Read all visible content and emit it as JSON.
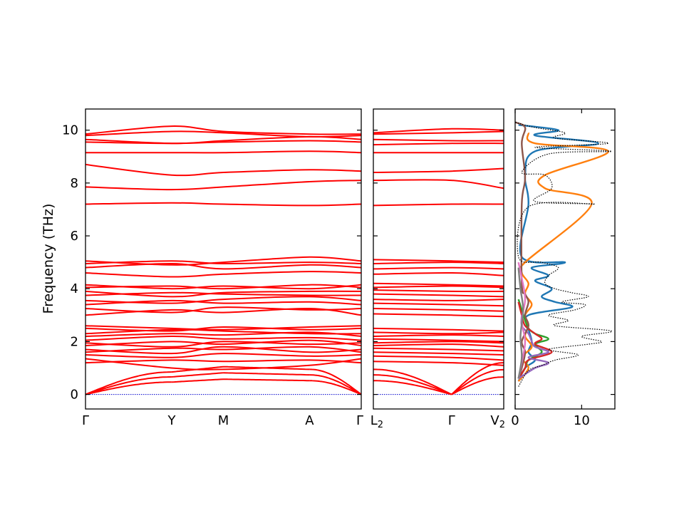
{
  "chart_data": {
    "type": "line",
    "ylabel": "Frequency (THz)",
    "ylim": [
      -0.55,
      10.8
    ],
    "yticks": [
      0,
      2,
      4,
      6,
      8,
      10
    ],
    "grid": false,
    "line_color": "#ff0000",
    "zero_line_color": "#0000cc",
    "panels": [
      {
        "name": "band-path-1",
        "kpoints": [
          {
            "label": "Γ",
            "x": 0.0
          },
          {
            "label": "Y",
            "x": 1.0
          },
          {
            "label": "M",
            "x": 1.6
          },
          {
            "label": "A",
            "x": 2.6
          },
          {
            "label": "Γ",
            "x": 3.2
          }
        ],
        "acoustic_max": [
          0.0,
          0.85,
          1.05,
          0.95,
          0.0
        ],
        "optical_bands": [
          [
            1.2,
            1.3,
            1.25,
            1.3,
            1.2
          ],
          [
            1.35,
            1.0,
            0.95,
            1.1,
            1.35
          ],
          [
            1.5,
            1.4,
            1.55,
            1.45,
            1.5
          ],
          [
            1.6,
            1.75,
            1.7,
            1.8,
            1.6
          ],
          [
            1.7,
            1.55,
            1.8,
            1.6,
            1.7
          ],
          [
            1.85,
            2.0,
            1.9,
            2.05,
            1.85
          ],
          [
            1.95,
            1.8,
            2.0,
            1.9,
            1.95
          ],
          [
            2.05,
            2.2,
            2.1,
            2.15,
            2.05
          ],
          [
            2.2,
            2.3,
            2.25,
            2.35,
            2.2
          ],
          [
            2.3,
            2.45,
            2.4,
            2.3,
            2.3
          ],
          [
            2.5,
            2.4,
            2.55,
            2.45,
            2.5
          ],
          [
            2.6,
            2.5,
            2.45,
            2.55,
            2.6
          ],
          [
            3.0,
            3.2,
            3.1,
            3.25,
            3.0
          ],
          [
            3.25,
            3.1,
            3.3,
            3.2,
            3.25
          ],
          [
            3.4,
            3.55,
            3.45,
            3.5,
            3.4
          ],
          [
            3.55,
            3.45,
            3.6,
            3.7,
            3.55
          ],
          [
            3.75,
            3.85,
            3.8,
            3.75,
            3.75
          ],
          [
            3.9,
            3.7,
            3.85,
            3.9,
            3.9
          ],
          [
            4.05,
            4.1,
            4.0,
            4.15,
            4.05
          ],
          [
            4.15,
            4.0,
            4.1,
            4.0,
            4.15
          ],
          [
            4.6,
            4.45,
            4.55,
            4.65,
            4.6
          ],
          [
            4.8,
            4.95,
            4.75,
            4.9,
            4.8
          ],
          [
            4.95,
            5.05,
            4.95,
            5.0,
            4.95
          ],
          [
            5.05,
            4.9,
            5.0,
            5.2,
            5.05
          ],
          [
            7.2,
            7.25,
            7.2,
            7.15,
            7.2
          ],
          [
            7.85,
            7.75,
            7.85,
            8.05,
            8.1
          ],
          [
            8.7,
            8.3,
            8.4,
            8.5,
            8.45
          ],
          [
            9.15,
            9.15,
            9.15,
            9.2,
            9.15
          ],
          [
            9.55,
            9.5,
            9.55,
            9.6,
            9.55
          ],
          [
            9.65,
            9.5,
            9.6,
            9.75,
            9.65
          ],
          [
            9.8,
            9.95,
            9.9,
            9.75,
            9.8
          ],
          [
            9.85,
            10.15,
            9.95,
            9.85,
            9.85
          ]
        ]
      },
      {
        "name": "band-path-2",
        "kpoints": [
          {
            "label": "L2",
            "x": 0.0
          },
          {
            "label": "Γ",
            "x": 0.6
          },
          {
            "label": "V2",
            "x": 1.0
          }
        ],
        "acoustic_max": [
          0.95,
          0.0,
          1.2
        ],
        "optical_bands": [
          [
            1.25,
            1.2,
            1.1
          ],
          [
            1.45,
            1.4,
            1.3
          ],
          [
            1.6,
            1.55,
            1.5
          ],
          [
            1.75,
            1.7,
            1.65
          ],
          [
            1.85,
            1.9,
            1.8
          ],
          [
            1.95,
            2.0,
            1.95
          ],
          [
            2.1,
            2.05,
            2.0
          ],
          [
            2.2,
            2.25,
            2.2
          ],
          [
            2.35,
            2.3,
            2.35
          ],
          [
            2.5,
            2.45,
            2.4
          ],
          [
            3.05,
            3.0,
            2.95
          ],
          [
            3.25,
            3.2,
            3.15
          ],
          [
            3.45,
            3.4,
            3.35
          ],
          [
            3.6,
            3.55,
            3.6
          ],
          [
            3.8,
            3.75,
            3.7
          ],
          [
            3.95,
            3.9,
            3.9
          ],
          [
            4.05,
            4.1,
            4.05
          ],
          [
            4.2,
            4.15,
            4.1
          ],
          [
            4.55,
            4.6,
            4.5
          ],
          [
            4.75,
            4.8,
            4.75
          ],
          [
            4.95,
            5.0,
            4.95
          ],
          [
            5.1,
            5.05,
            5.0
          ],
          [
            7.15,
            7.2,
            7.2
          ],
          [
            8.1,
            8.1,
            7.8
          ],
          [
            8.4,
            8.45,
            8.55
          ],
          [
            9.15,
            9.15,
            9.15
          ],
          [
            9.45,
            9.5,
            9.5
          ],
          [
            9.65,
            9.6,
            9.6
          ],
          [
            9.85,
            9.9,
            9.95
          ],
          [
            9.9,
            10.05,
            10.0
          ]
        ]
      }
    ],
    "dos": {
      "xlim": [
        0,
        15
      ],
      "xticks": [
        0,
        10
      ],
      "total_color": "#000000",
      "total_style": "dotted",
      "total": [
        [
          0.3,
          0.5
        ],
        [
          0.9,
          2.0
        ],
        [
          1.1,
          4.0
        ],
        [
          1.3,
          6.0
        ],
        [
          1.5,
          9.5
        ],
        [
          1.7,
          5.0
        ],
        [
          1.9,
          11.0
        ],
        [
          2.0,
          13.0
        ],
        [
          2.2,
          10.0
        ],
        [
          2.4,
          14.5
        ],
        [
          2.6,
          6.0
        ],
        [
          2.8,
          8.0
        ],
        [
          3.0,
          5.0
        ],
        [
          3.2,
          9.0
        ],
        [
          3.4,
          10.5
        ],
        [
          3.5,
          7.0
        ],
        [
          3.7,
          11.0
        ],
        [
          3.85,
          8.5
        ],
        [
          4.0,
          6.0
        ],
        [
          4.2,
          4.5
        ],
        [
          4.5,
          5.0
        ],
        [
          4.8,
          6.5
        ],
        [
          5.0,
          4.0
        ],
        [
          5.2,
          0.5
        ],
        [
          7.1,
          2.0
        ],
        [
          7.2,
          12.0
        ],
        [
          7.3,
          3.0
        ],
        [
          7.8,
          5.5
        ],
        [
          8.3,
          4.5
        ],
        [
          8.4,
          1.0
        ],
        [
          9.1,
          5.0
        ],
        [
          9.2,
          14.5
        ],
        [
          9.35,
          3.0
        ],
        [
          9.5,
          14.0
        ],
        [
          9.7,
          6.0
        ],
        [
          9.9,
          7.5
        ],
        [
          10.1,
          3.0
        ],
        [
          10.3,
          0.0
        ]
      ],
      "partials": [
        {
          "color": "#1f77b4",
          "points": [
            [
              0.5,
              0.5
            ],
            [
              1.0,
              1.5
            ],
            [
              1.3,
              3.0
            ],
            [
              1.6,
              2.0
            ],
            [
              2.0,
              2.5
            ],
            [
              2.5,
              2.0
            ],
            [
              3.0,
              2.0
            ],
            [
              3.3,
              8.5
            ],
            [
              3.5,
              6.0
            ],
            [
              3.7,
              4.0
            ],
            [
              4.0,
              5.5
            ],
            [
              4.3,
              3.0
            ],
            [
              4.5,
              5.0
            ],
            [
              4.8,
              2.5
            ],
            [
              5.0,
              7.5
            ],
            [
              5.2,
              1.0
            ],
            [
              7.2,
              2.0
            ],
            [
              8.3,
              1.5
            ],
            [
              9.2,
              3.0
            ],
            [
              9.5,
              12.5
            ],
            [
              9.8,
              3.0
            ],
            [
              10.0,
              6.5
            ],
            [
              10.2,
              0.5
            ]
          ]
        },
        {
          "color": "#ff7f0e",
          "points": [
            [
              0.5,
              0.5
            ],
            [
              1.0,
              2.0
            ],
            [
              1.4,
              1.0
            ],
            [
              1.8,
              2.5
            ],
            [
              2.2,
              1.5
            ],
            [
              2.6,
              2.0
            ],
            [
              3.0,
              1.5
            ],
            [
              3.4,
              2.5
            ],
            [
              3.8,
              1.5
            ],
            [
              4.2,
              2.0
            ],
            [
              4.6,
              1.0
            ],
            [
              5.0,
              1.5
            ],
            [
              7.2,
              11.5
            ],
            [
              7.8,
              4.5
            ],
            [
              8.3,
              4.5
            ],
            [
              9.2,
              14.0
            ],
            [
              9.5,
              3.0
            ],
            [
              9.9,
              2.0
            ]
          ]
        },
        {
          "color": "#2ca02c",
          "points": [
            [
              0.6,
              0.5
            ],
            [
              1.0,
              1.5
            ],
            [
              1.3,
              2.0
            ],
            [
              1.6,
              4.0
            ],
            [
              1.9,
              3.0
            ],
            [
              2.1,
              5.0
            ],
            [
              2.3,
              3.0
            ],
            [
              2.5,
              2.0
            ],
            [
              2.8,
              1.5
            ],
            [
              3.2,
              1.0
            ],
            [
              3.6,
              0.5
            ]
          ]
        },
        {
          "color": "#d62728",
          "points": [
            [
              0.6,
              0.5
            ],
            [
              1.0,
              1.5
            ],
            [
              1.3,
              2.0
            ],
            [
              1.6,
              5.5
            ],
            [
              1.9,
              3.0
            ],
            [
              2.1,
              4.0
            ],
            [
              2.3,
              3.0
            ],
            [
              2.6,
              1.5
            ],
            [
              3.0,
              1.0
            ],
            [
              3.5,
              0.5
            ]
          ]
        },
        {
          "color": "#9467bd",
          "points": [
            [
              0.6,
              0.5
            ],
            [
              1.0,
              3.0
            ],
            [
              1.2,
              5.0
            ],
            [
              1.4,
              2.0
            ],
            [
              1.6,
              5.0
            ],
            [
              1.8,
              3.0
            ],
            [
              2.0,
              2.5
            ],
            [
              2.3,
              2.0
            ],
            [
              2.6,
              1.0
            ],
            [
              3.0,
              1.0
            ]
          ]
        },
        {
          "color": "#8c564b",
          "points": [
            [
              0.6,
              0.5
            ],
            [
              1.0,
              1.0
            ],
            [
              1.6,
              1.5
            ],
            [
              2.0,
              1.0
            ],
            [
              2.6,
              2.0
            ],
            [
              3.0,
              1.5
            ],
            [
              3.5,
              2.0
            ],
            [
              3.8,
              1.5
            ],
            [
              4.2,
              1.0
            ],
            [
              7.2,
              1.0
            ],
            [
              8.2,
              1.5
            ],
            [
              9.5,
              1.0
            ],
            [
              10.1,
              1.5
            ],
            [
              10.3,
              0.0
            ]
          ]
        },
        {
          "color": "#e377c2",
          "points": [
            [
              0.6,
              0.5
            ],
            [
              1.2,
              1.0
            ],
            [
              2.0,
              1.5
            ],
            [
              2.8,
              1.0
            ],
            [
              3.6,
              1.5
            ],
            [
              4.4,
              1.0
            ],
            [
              5.0,
              0.5
            ]
          ]
        },
        {
          "color": "#7f7f7f",
          "points": [
            [
              0.6,
              0.5
            ],
            [
              1.4,
              1.0
            ],
            [
              2.2,
              0.8
            ],
            [
              3.2,
              1.2
            ],
            [
              4.0,
              0.8
            ],
            [
              4.8,
              0.5
            ]
          ]
        }
      ]
    }
  }
}
